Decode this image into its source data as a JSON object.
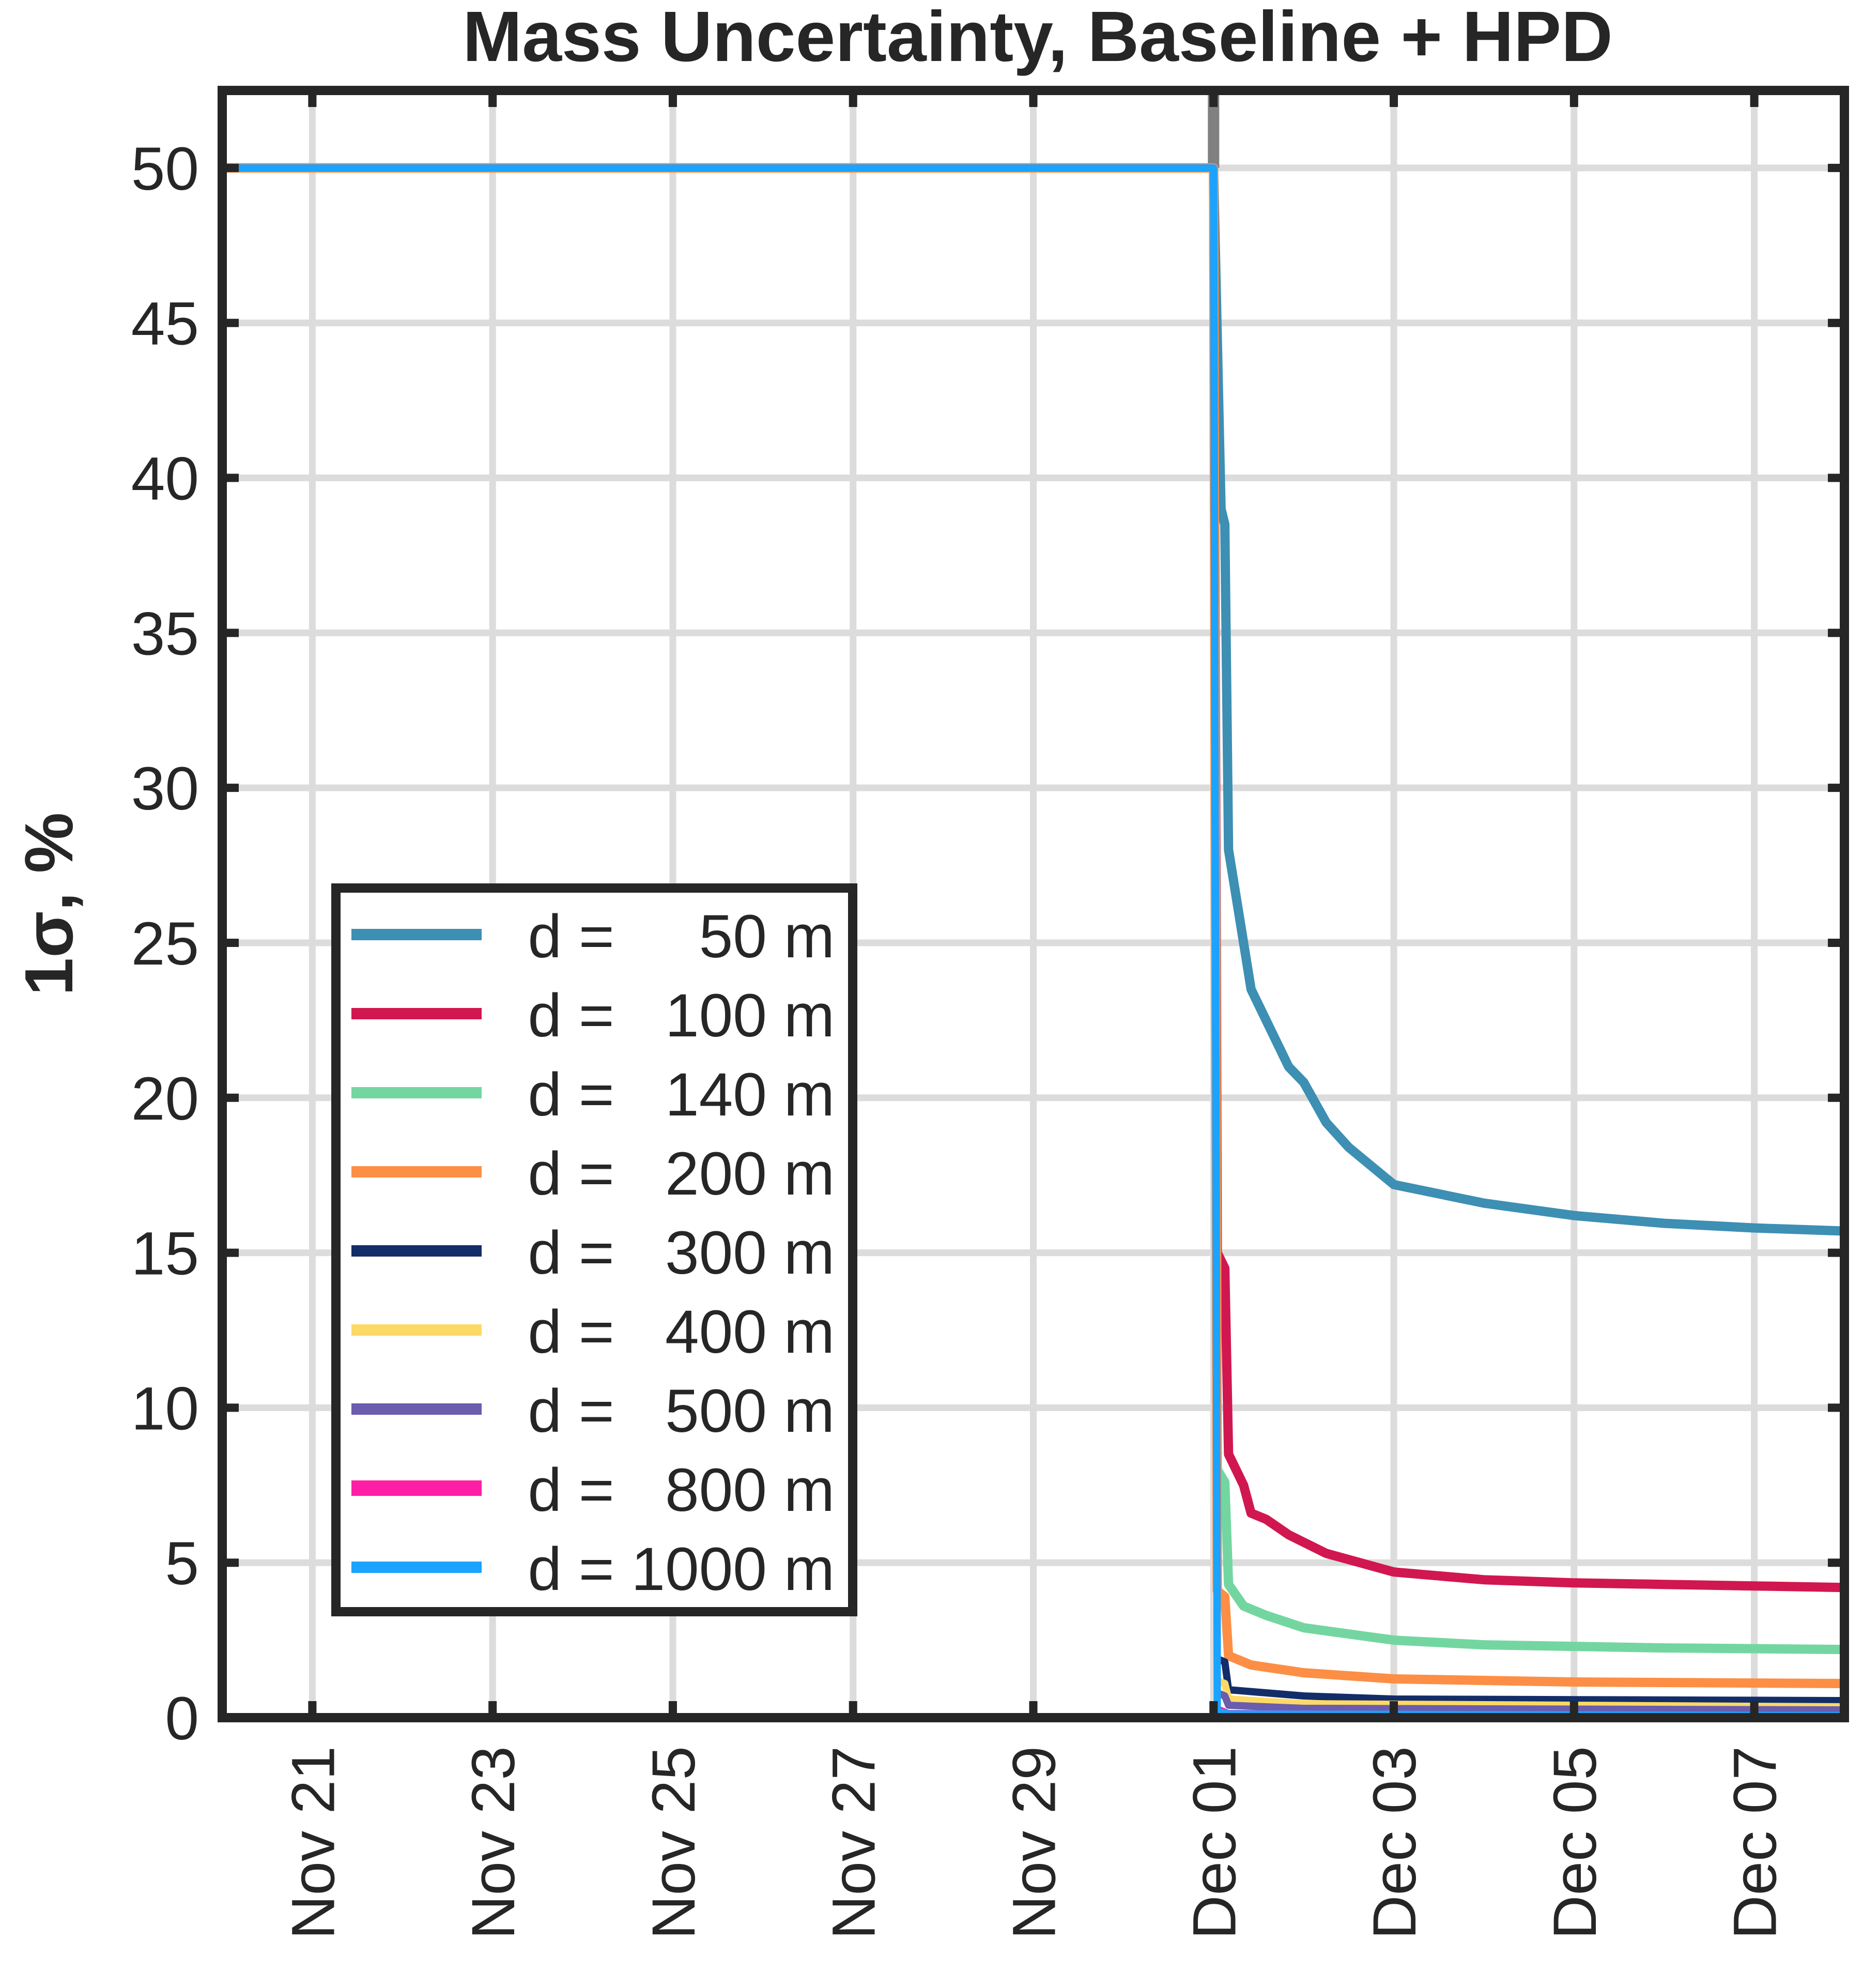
{
  "chart_data": {
    "type": "line",
    "title": "Mass Uncertainty, Baseline + HPD",
    "ylabel": "1σ, %",
    "xlabel": "",
    "x_tick_labels": [
      "Nov 21",
      "Nov 23",
      "Nov 25",
      "Nov 27",
      "Nov 29",
      "Dec 01",
      "Dec 03",
      "Dec 05",
      "Dec 07"
    ],
    "x_ticks": [
      "2023-11-21",
      "2023-11-23",
      "2023-11-25",
      "2023-11-27",
      "2023-11-29",
      "2023-12-01",
      "2023-12-03",
      "2023-12-05",
      "2023-12-07"
    ],
    "xlim": [
      "2023-11-20",
      "2023-12-08"
    ],
    "ylim": [
      0,
      52.5
    ],
    "y_ticks": [
      0,
      5,
      10,
      15,
      20,
      25,
      30,
      35,
      40,
      45,
      50
    ],
    "y_tick_labels": [
      "0",
      "5",
      "10",
      "15",
      "20",
      "25",
      "30",
      "35",
      "40",
      "45",
      "50"
    ],
    "grid": true,
    "legend_position": "center-left",
    "vertical_marker": {
      "x": "2023-12-01",
      "color": "#808080"
    },
    "series": [
      {
        "name": "d =     50 m",
        "color": "#3d8fb3",
        "points": [
          [
            "2023-11-20",
            50
          ],
          [
            "2023-12-01 00:00",
            50
          ],
          [
            "2023-12-01 02:00",
            39
          ],
          [
            "2023-12-01 03:00",
            38.5
          ],
          [
            "2023-12-01 04:00",
            28
          ],
          [
            "2023-12-01 08:00",
            25
          ],
          [
            "2023-12-01 10:00",
            23.5
          ],
          [
            "2023-12-01 14:00",
            22.5
          ],
          [
            "2023-12-01 20:00",
            21
          ],
          [
            "2023-12-02 00:00",
            20.5
          ],
          [
            "2023-12-02 06:00",
            19.2
          ],
          [
            "2023-12-02 12:00",
            18.4
          ],
          [
            "2023-12-03 00:00",
            17.2
          ],
          [
            "2023-12-04 00:00",
            16.6
          ],
          [
            "2023-12-05 00:00",
            16.2
          ],
          [
            "2023-12-06 00:00",
            15.95
          ],
          [
            "2023-12-07 00:00",
            15.8
          ],
          [
            "2023-12-08 00:00",
            15.7
          ]
        ]
      },
      {
        "name": "d =   100 m",
        "color": "#d1174f",
        "points": [
          [
            "2023-11-20",
            50
          ],
          [
            "2023-12-01 00:00",
            50
          ],
          [
            "2023-12-01 01:00",
            15
          ],
          [
            "2023-12-01 03:00",
            14.5
          ],
          [
            "2023-12-01 04:00",
            8.5
          ],
          [
            "2023-12-01 08:00",
            7.5
          ],
          [
            "2023-12-01 10:00",
            6.6
          ],
          [
            "2023-12-01 14:00",
            6.4
          ],
          [
            "2023-12-01 20:00",
            5.9
          ],
          [
            "2023-12-02 06:00",
            5.3
          ],
          [
            "2023-12-03 00:00",
            4.7
          ],
          [
            "2023-12-04 00:00",
            4.45
          ],
          [
            "2023-12-05 00:00",
            4.35
          ],
          [
            "2023-12-06 00:00",
            4.3
          ],
          [
            "2023-12-07 00:00",
            4.25
          ],
          [
            "2023-12-08 00:00",
            4.2
          ]
        ]
      },
      {
        "name": "d =   140 m",
        "color": "#73d6a1",
        "points": [
          [
            "2023-11-20",
            50
          ],
          [
            "2023-12-01 00:00",
            50
          ],
          [
            "2023-12-01 01:00",
            8
          ],
          [
            "2023-12-01 03:00",
            7.6
          ],
          [
            "2023-12-01 04:00",
            4.3
          ],
          [
            "2023-12-01 08:00",
            3.6
          ],
          [
            "2023-12-01 14:00",
            3.3
          ],
          [
            "2023-12-02 00:00",
            2.9
          ],
          [
            "2023-12-03 00:00",
            2.5
          ],
          [
            "2023-12-04 00:00",
            2.35
          ],
          [
            "2023-12-05 00:00",
            2.3
          ],
          [
            "2023-12-06 00:00",
            2.25
          ],
          [
            "2023-12-08 00:00",
            2.2
          ]
        ]
      },
      {
        "name": "d =   200 m",
        "color": "#fc8f45",
        "points": [
          [
            "2023-11-20",
            50
          ],
          [
            "2023-12-01 00:00",
            50
          ],
          [
            "2023-12-01 01:00",
            4.1
          ],
          [
            "2023-12-01 03:00",
            3.9
          ],
          [
            "2023-12-01 04:00",
            2.0
          ],
          [
            "2023-12-01 10:00",
            1.7
          ],
          [
            "2023-12-02 00:00",
            1.45
          ],
          [
            "2023-12-03 00:00",
            1.25
          ],
          [
            "2023-12-05 00:00",
            1.15
          ],
          [
            "2023-12-08 00:00",
            1.1
          ]
        ]
      },
      {
        "name": "d =   300 m",
        "color": "#132d68",
        "points": [
          [
            "2023-11-20",
            50
          ],
          [
            "2023-12-01 00:00",
            50
          ],
          [
            "2023-12-01 01:00",
            1.9
          ],
          [
            "2023-12-01 03:00",
            1.8
          ],
          [
            "2023-12-01 04:00",
            0.9
          ],
          [
            "2023-12-02 00:00",
            0.7
          ],
          [
            "2023-12-03 00:00",
            0.6
          ],
          [
            "2023-12-08 00:00",
            0.55
          ]
        ]
      },
      {
        "name": "d =   400 m",
        "color": "#fcd965",
        "points": [
          [
            "2023-11-20",
            50
          ],
          [
            "2023-12-01 00:00",
            50
          ],
          [
            "2023-12-01 01:00",
            1.2
          ],
          [
            "2023-12-01 03:00",
            1.1
          ],
          [
            "2023-12-01 04:00",
            0.6
          ],
          [
            "2023-12-02 00:00",
            0.45
          ],
          [
            "2023-12-08 00:00",
            0.35
          ]
        ]
      },
      {
        "name": "d =   500 m",
        "color": "#6b5cad",
        "points": [
          [
            "2023-11-20",
            50
          ],
          [
            "2023-12-01 00:00",
            50
          ],
          [
            "2023-12-01 01:00",
            0.8
          ],
          [
            "2023-12-01 03:00",
            0.7
          ],
          [
            "2023-12-01 04:00",
            0.4
          ],
          [
            "2023-12-02 00:00",
            0.3
          ],
          [
            "2023-12-08 00:00",
            0.25
          ]
        ]
      },
      {
        "name": "d =   800 m",
        "color": "#ff1fa6",
        "points": [
          [
            "2023-11-20",
            50
          ],
          [
            "2023-12-01 00:00",
            50
          ],
          [
            "2023-12-01 01:00",
            0.35
          ],
          [
            "2023-12-01 04:00",
            0.2
          ],
          [
            "2023-12-08 00:00",
            0.1
          ]
        ]
      },
      {
        "name": "d = 1000 m",
        "color": "#1aa3ff",
        "points": [
          [
            "2023-11-20",
            50
          ],
          [
            "2023-12-01 00:00",
            50
          ],
          [
            "2023-12-01 01:00",
            0.2
          ],
          [
            "2023-12-01 04:00",
            0.12
          ],
          [
            "2023-12-08 00:00",
            0.07
          ]
        ]
      }
    ]
  }
}
